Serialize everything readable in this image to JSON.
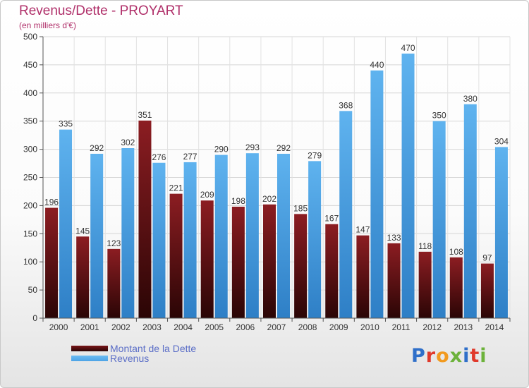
{
  "title": "Revenus/Dette - PROYART",
  "subtitle": "(en milliers d'€)",
  "legend": {
    "items": [
      {
        "label": "Montant de la Dette",
        "color": "#7a1518"
      },
      {
        "label": "Revenus",
        "color": "#4da3e6"
      }
    ]
  },
  "logo": {
    "text": "Proxiti"
  },
  "colors": {
    "debt": "#7a1518",
    "revenue": "#4da3e6",
    "title": "#b0306a",
    "legend_text": "#5b6ec7"
  },
  "chart_data": {
    "type": "bar",
    "title": "Revenus/Dette - PROYART",
    "subtitle": "(en milliers d'€)",
    "xlabel": "",
    "ylabel": "",
    "categories": [
      "2000",
      "2001",
      "2002",
      "2003",
      "2004",
      "2005",
      "2006",
      "2007",
      "2008",
      "2009",
      "2010",
      "2011",
      "2012",
      "2013",
      "2014"
    ],
    "series": [
      {
        "name": "Montant de la Dette",
        "values": [
          196,
          145,
          123,
          351,
          221,
          209,
          198,
          202,
          185,
          167,
          147,
          133,
          118,
          108,
          97
        ]
      },
      {
        "name": "Revenus",
        "values": [
          335,
          292,
          302,
          276,
          277,
          290,
          293,
          292,
          279,
          368,
          440,
          470,
          350,
          380,
          304
        ]
      }
    ],
    "ylim": [
      0,
      500
    ],
    "yticks": [
      0,
      50,
      100,
      150,
      200,
      250,
      300,
      350,
      400,
      450,
      500
    ],
    "grid": true,
    "legend_position": "bottom-left"
  }
}
